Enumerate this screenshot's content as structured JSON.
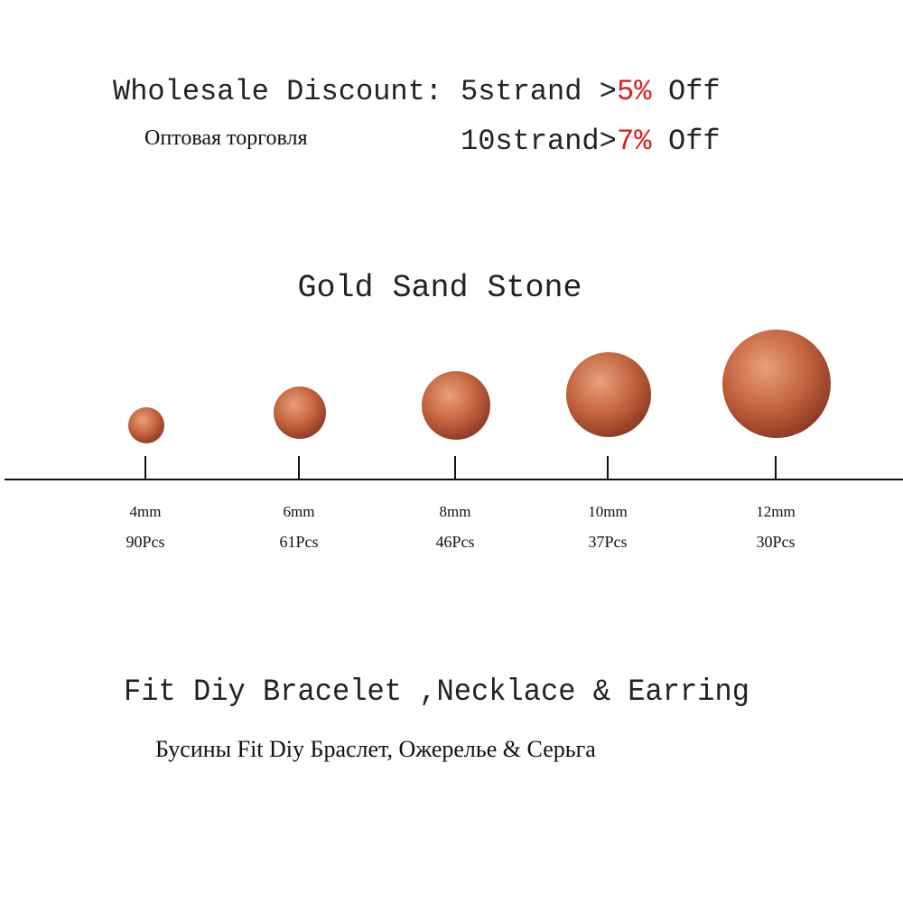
{
  "header": {
    "discount_label": "Wholesale Discount:",
    "russian_label": "Оптовая торговля",
    "tiers": [
      {
        "strands": "5strand >",
        "percent": "5%",
        "suffix": "Off"
      },
      {
        "strands": "10strand>",
        "percent": "7%",
        "suffix": "Off"
      }
    ]
  },
  "title": "Gold Sand Stone",
  "sizes": [
    {
      "size": "4mm",
      "count": "90Pcs"
    },
    {
      "size": "6mm",
      "count": "61Pcs"
    },
    {
      "size": "8mm",
      "count": "46Pcs"
    },
    {
      "size": "10mm",
      "count": "37Pcs"
    },
    {
      "size": "12mm",
      "count": "30Pcs"
    }
  ],
  "footer": {
    "english": "Fit Diy Bracelet ,Necklace & Earring",
    "russian": "Бусины Fit Diy Браслет, Ожерелье & Серьга"
  }
}
